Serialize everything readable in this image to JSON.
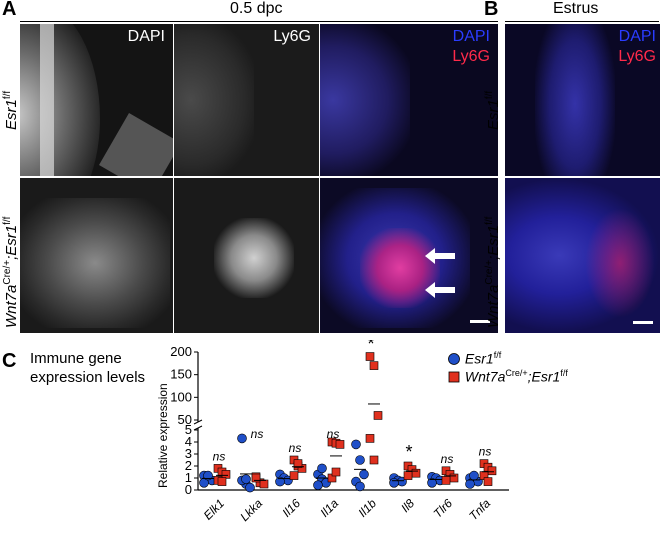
{
  "panel_a": {
    "letter": "A",
    "timepoint": "0.5 dpc",
    "channels": {
      "dapi": "DAPI",
      "ly6g": "Ly6G"
    },
    "row1": {
      "gene": "Esr1",
      "sup": "f/f"
    },
    "row2": {
      "gene_a": "Wnt7a",
      "sup_a": "Cre/+",
      "sep": ";",
      "gene_b": "Esr1",
      "sup_b": "f/f"
    }
  },
  "panel_b": {
    "letter": "B",
    "timepoint": "Estrus",
    "channels": {
      "dapi": "DAPI",
      "ly6g": "Ly6G"
    },
    "row1": {
      "gene": "Esr1",
      "sup": "f/f"
    },
    "row2": {
      "gene_a": "Wnt7a",
      "sup_a": "Cre/+",
      "sep": ";",
      "gene_b": "Esr1",
      "sup_b": "f/f"
    }
  },
  "panel_c": {
    "letter": "C",
    "title_line1": "Immune gene",
    "title_line2": "expression levels",
    "legend": [
      {
        "gene": "Esr1",
        "sup": "f/f",
        "color": "#1f4fc8",
        "shape": "circle"
      },
      {
        "gene_a": "Wnt7a",
        "sup_a": "Cre/+",
        "sep": ";",
        "gene_b": "Esr1",
        "sup_b": "f/f",
        "color": "#e0301e",
        "shape": "square"
      }
    ]
  },
  "colors": {
    "dapi": "#2a3cff",
    "ly6g": "#ff2a4a",
    "esr1": "#1f4fc8",
    "wnt7a": "#e0301e"
  },
  "chart_data": {
    "type": "scatter",
    "ylabel": "Relative expression",
    "broken_axis": true,
    "lower_ylim": [
      0,
      5
    ],
    "upper_ylim": [
      50,
      200
    ],
    "lower_ticks": [
      "0",
      "1",
      "2",
      "3",
      "4",
      "5"
    ],
    "upper_ticks": [
      "50",
      "100",
      "150",
      "200"
    ],
    "categories": [
      "Elk1",
      "Lkka",
      "Il16",
      "Il1a",
      "Il1b",
      "Il8",
      "Tlr6",
      "Tnfa"
    ],
    "significance": [
      "ns",
      "ns",
      "ns",
      "ns",
      "*",
      "*",
      "ns",
      "ns"
    ],
    "series": [
      {
        "name": "Esr1f/f",
        "values": [
          [
            1.2,
            1.0,
            0.8,
            0.6,
            1.2
          ],
          [
            4.3,
            0.5,
            0.2,
            0.8,
            0.9
          ],
          [
            1.3,
            1.0,
            0.8,
            0.7
          ],
          [
            1.3,
            0.9,
            0.6,
            0.4,
            1.8
          ],
          [
            3.8,
            2.5,
            1.3,
            0.7,
            0.3
          ],
          [
            1.0,
            0.8,
            0.7,
            0.6
          ],
          [
            1.1,
            1.0,
            0.8,
            0.6
          ],
          [
            1.0,
            0.8,
            0.7,
            0.5,
            1.2
          ]
        ]
      },
      {
        "name": "Wnt7aCre/+;Esr1f/f",
        "values": [
          [
            1.8,
            1.5,
            1.3,
            0.8,
            0.7
          ],
          [
            1.1,
            0.6,
            0.5,
            1.0
          ],
          [
            2.5,
            2.0,
            1.8,
            1.2,
            2.2
          ],
          [
            4.0,
            3.9,
            3.8,
            1.0,
            1.5
          ],
          [
            190,
            170,
            60,
            4.3,
            2.5
          ],
          [
            2.0,
            1.7,
            1.4,
            1.2
          ],
          [
            1.6,
            1.3,
            1.0,
            0.8
          ],
          [
            2.2,
            1.9,
            1.6,
            1.2,
            0.7
          ]
        ]
      }
    ]
  }
}
